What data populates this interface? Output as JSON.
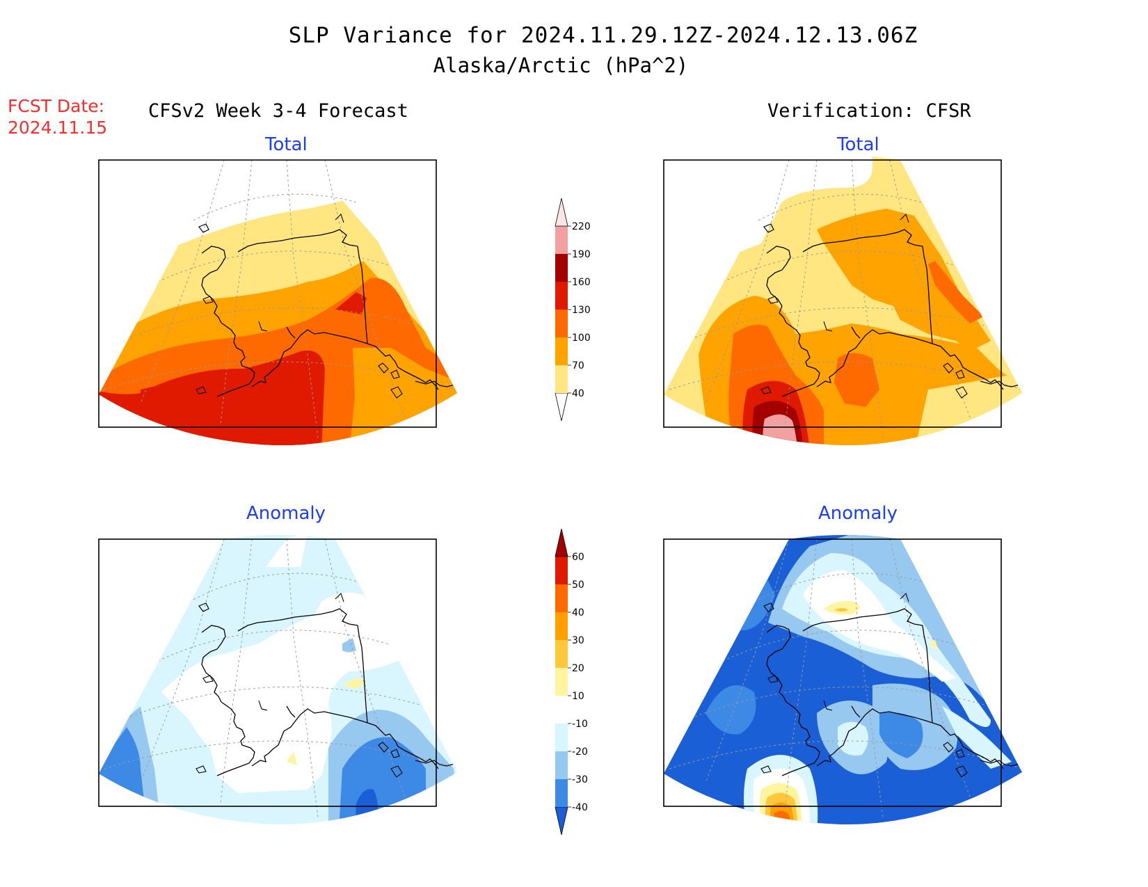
{
  "title": {
    "line1": "SLP Variance for 2024.11.29.12Z-2024.12.13.06Z",
    "line2": "Alaska/Arctic (hPa^2)"
  },
  "forecast_date": {
    "label": "FCST Date:",
    "value": "2024.11.15"
  },
  "columns": {
    "left": "CFSv2 Week 3-4 Forecast",
    "right": "Verification: CFSR"
  },
  "panels": [
    {
      "id": "forecast-total",
      "title": "Total"
    },
    {
      "id": "verification-total",
      "title": "Total"
    },
    {
      "id": "forecast-anomaly",
      "title": "Anomaly"
    },
    {
      "id": "verification-anomaly",
      "title": "Anomaly"
    }
  ],
  "colorbars": {
    "total": {
      "labels": [
        "40",
        "70",
        "100",
        "130",
        "160",
        "190",
        "220"
      ],
      "colors": [
        "#ffffff",
        "#ffe680",
        "#ffa300",
        "#ff6a00",
        "#e01a00",
        "#a50000",
        "#f2a0a0",
        "#ffe6e6"
      ]
    },
    "anomaly": {
      "labels": [
        "-40",
        "-30",
        "-20",
        "-10",
        "10",
        "20",
        "30",
        "40",
        "50",
        "60"
      ],
      "colors": [
        "#1a5fd6",
        "#3c8ae6",
        "#96c8f0",
        "#d9f6ff",
        "#ffffff",
        "#fff5a0",
        "#ffc83c",
        "#ffa000",
        "#ff6a00",
        "#e01a00",
        "#a50000"
      ]
    }
  },
  "fill_colors": {
    "t40": "#ffe680",
    "t70": "#ffa300",
    "t100": "#ff6a00",
    "t130": "#e01a00",
    "t160": "#a50000",
    "t190": "#f2a0a0",
    "am40": "#1a5fd6",
    "am30": "#3c8ae6",
    "am20": "#96c8f0",
    "am10": "#d9f6ff",
    "ap10": "#fff5a0",
    "ap20": "#ffc83c",
    "ap30": "#ffa000",
    "ap40": "#ff6a00",
    "ap50": "#e01a00",
    "ap60": "#a50000"
  }
}
